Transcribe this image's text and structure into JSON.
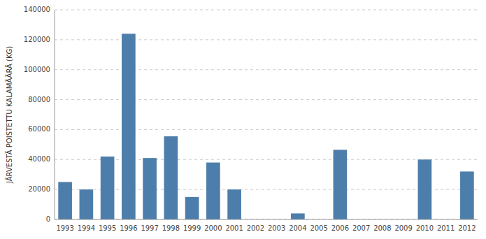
{
  "chart_data": {
    "type": "bar",
    "categories": [
      "1993",
      "1994",
      "1995",
      "1996",
      "1997",
      "1998",
      "1999",
      "2000",
      "2001",
      "2002",
      "2003",
      "2004",
      "2005",
      "2006",
      "2007",
      "2008",
      "2009",
      "2010",
      "2011",
      "2012"
    ],
    "values": [
      25000,
      20000,
      42000,
      124000,
      41000,
      55500,
      15000,
      38000,
      20000,
      0,
      0,
      4000,
      0,
      46500,
      0,
      0,
      0,
      40000,
      0,
      32000
    ],
    "color": "#4d7eab",
    "ylabel": "JÄRVESTÄ POISTETTU KALAMÄÄRÄ (KG)",
    "ylim": [
      0,
      140000
    ],
    "yticks": [
      0,
      20000,
      40000,
      60000,
      80000,
      100000,
      120000,
      140000
    ],
    "grid": true
  }
}
